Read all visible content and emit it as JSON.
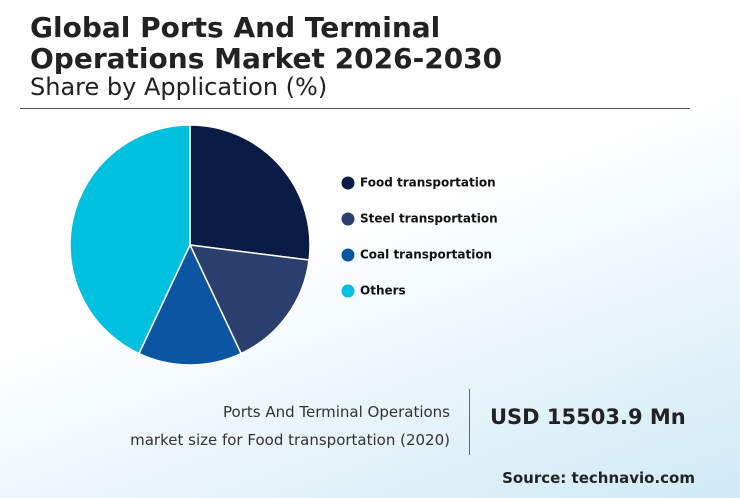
{
  "chart_data": {
    "type": "pie",
    "title": "Global Ports And Terminal Operations Market 2026-2030",
    "subtitle": "Share by Application (%)",
    "categories": [
      "Food transportation",
      "Steel transportation",
      "Coal transportation",
      "Others"
    ],
    "values": [
      27,
      16,
      14,
      43
    ],
    "colors": [
      "#0a1c45",
      "#2a3f6e",
      "#0b55a3",
      "#00c0e0"
    ]
  },
  "footer": {
    "caption": [
      "Ports And Terminal Operations",
      "market size for Food transportation (2020)"
    ],
    "market_size": "USD 15503.9 Mn",
    "source": "Source: technavio.com"
  }
}
